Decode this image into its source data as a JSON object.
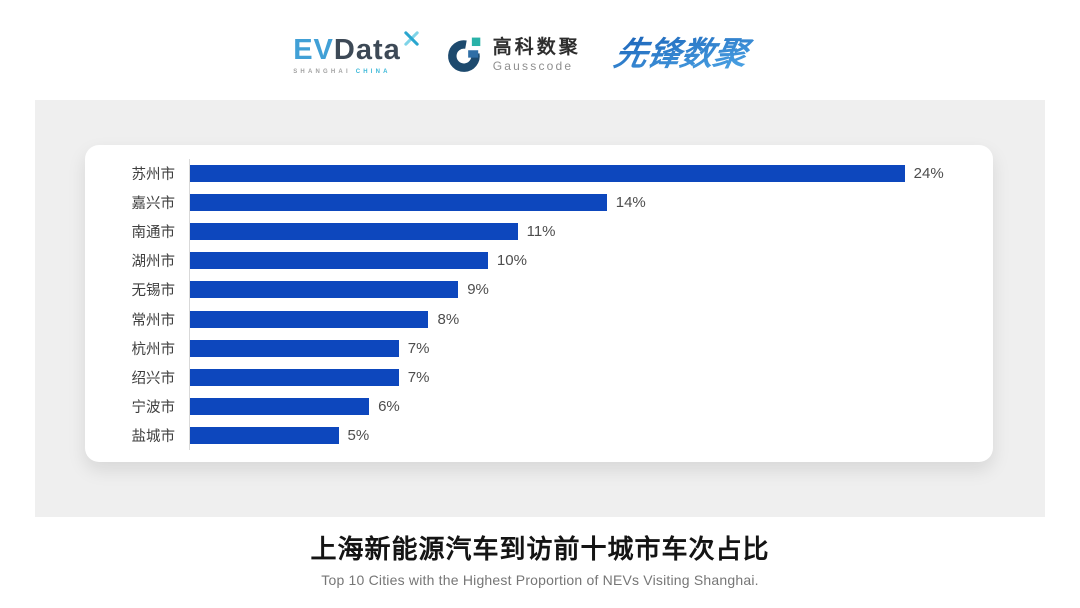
{
  "header": {
    "evdata": {
      "ev": "EV",
      "data": "Data",
      "sub_left": "SHANGHAI",
      "sub_right": "CHINA"
    },
    "gausscode": {
      "cn": "高科数聚",
      "en": "Gausscode"
    },
    "xianfeng": {
      "text": "先锋数聚"
    }
  },
  "chart_data": {
    "type": "bar",
    "orientation": "horizontal",
    "categories": [
      "苏州市",
      "嘉兴市",
      "南通市",
      "湖州市",
      "无锡市",
      "常州市",
      "杭州市",
      "绍兴市",
      "宁波市",
      "盐城市"
    ],
    "values": [
      24,
      14,
      11,
      10,
      9,
      8,
      7,
      7,
      6,
      5
    ],
    "value_labels": [
      "24%",
      "14%",
      "11%",
      "10%",
      "9%",
      "8%",
      "7%",
      "7%",
      "6%",
      "5%"
    ],
    "unit": "%",
    "xlim": [
      0,
      27
    ],
    "grid": false,
    "legend": "none",
    "bar_color": "#0D47BD",
    "title": "上海新能源汽车到访前十城市车次占比",
    "subtitle": "Top 10 Cities with the Highest Proportion of  NEVs Visiting Shanghai."
  },
  "footer": {
    "title": "上海新能源汽车到访前十城市车次占比",
    "subtitle": "Top 10 Cities with the Highest Proportion of  NEVs Visiting Shanghai."
  },
  "colors": {
    "bar": "#0D47BD",
    "band_bg": "#efefef",
    "card_bg": "#ffffff",
    "axis_line": "#d9d9d9",
    "category_text": "#3f3f3f",
    "value_text": "#4d4d4d",
    "title_text": "#141414",
    "subtitle_text": "#767676",
    "evdata_blue": "#41a0d6",
    "evdata_dark": "#3d4956",
    "evdata_cyan": "#3bb8d8",
    "gausscode_navy": "#1d4a6e",
    "gausscode_teal": "#29b2a8",
    "xianfeng_blue_dark": "#1b63b8",
    "xianfeng_blue_light": "#4fa8e8"
  }
}
